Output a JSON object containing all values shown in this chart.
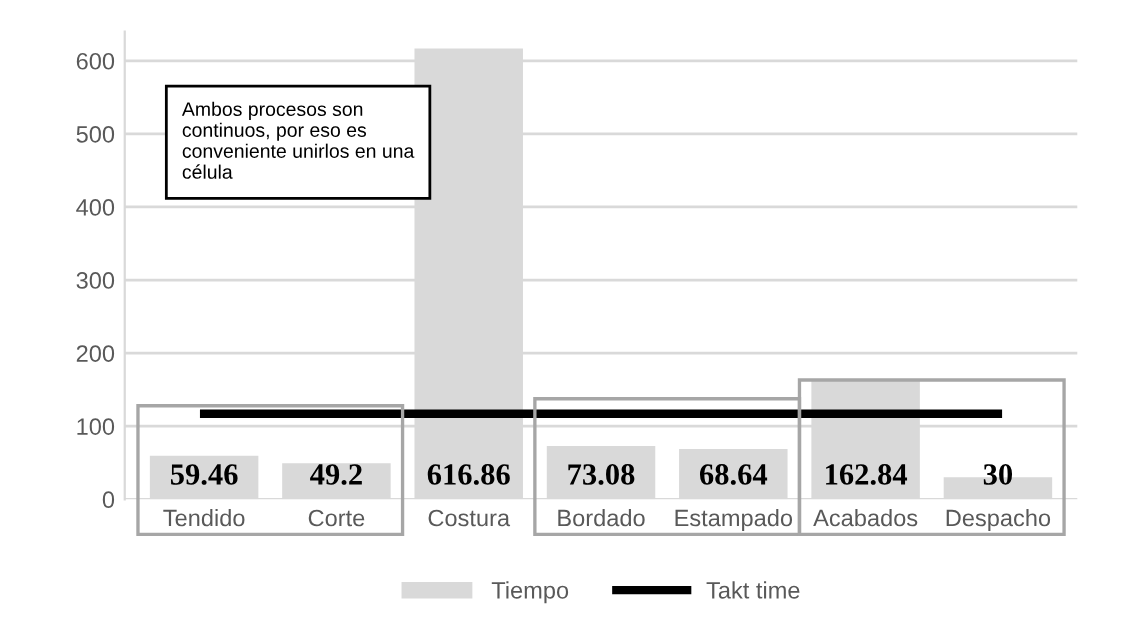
{
  "chart_data": {
    "type": "bar",
    "categories": [
      "Tendido",
      "Corte",
      "Costura",
      "Bordado",
      "Estampado",
      "Acabados",
      "Despacho"
    ],
    "series": [
      {
        "name": "Tiempo",
        "color": "#d9d9d9",
        "values": [
          59.46,
          49.2,
          616.86,
          73.08,
          68.64,
          162.84,
          30
        ],
        "value_labels": [
          "59.46",
          "49.2",
          "616.86",
          "73.08",
          "68.64",
          "162.84",
          "30"
        ]
      },
      {
        "name": "Takt time",
        "type": "line",
        "color": "#000000",
        "values": [
          117,
          117,
          117,
          117,
          117,
          117,
          117
        ]
      }
    ],
    "ylim": [
      0,
      640
    ],
    "yticks": [
      0,
      100,
      200,
      300,
      400,
      500,
      600
    ],
    "grid": "y",
    "legend": "bottom",
    "marker": "none",
    "line_style": "solid",
    "annotations": [
      "Ambos procesos son continuos, por eso es conveniente unirlos en una célula"
    ]
  }
}
